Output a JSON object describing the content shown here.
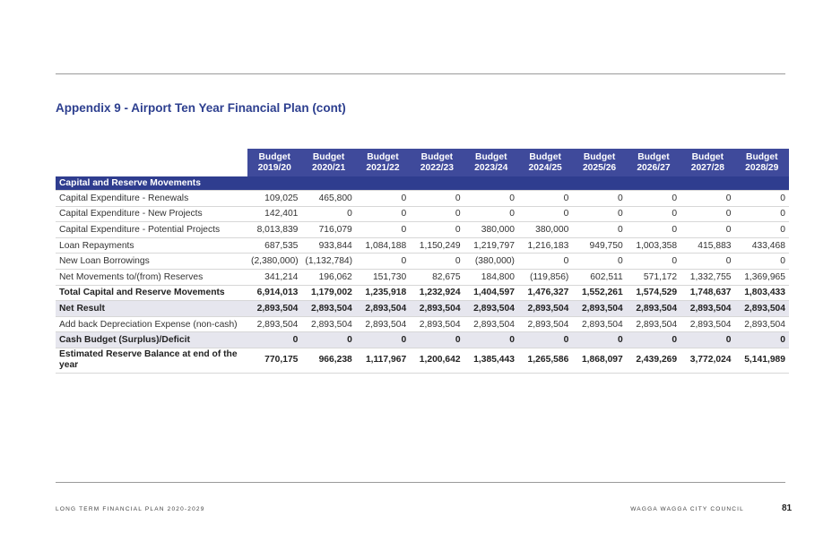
{
  "title": "Appendix 9 - Airport Ten Year Financial Plan (cont)",
  "columns": [
    [
      "Budget",
      "2019/20"
    ],
    [
      "Budget",
      "2020/21"
    ],
    [
      "Budget",
      "2021/22"
    ],
    [
      "Budget",
      "2022/23"
    ],
    [
      "Budget",
      "2023/24"
    ],
    [
      "Budget",
      "2024/25"
    ],
    [
      "Budget",
      "2025/26"
    ],
    [
      "Budget",
      "2026/27"
    ],
    [
      "Budget",
      "2027/28"
    ],
    [
      "Budget",
      "2028/29"
    ]
  ],
  "section_title": "Capital and Reserve Movements",
  "rows": [
    {
      "label": "Capital Expenditure - Renewals",
      "style": "normal",
      "values": [
        "109,025",
        "465,800",
        "0",
        "0",
        "0",
        "0",
        "0",
        "0",
        "0",
        "0"
      ]
    },
    {
      "label": "Capital Expenditure - New Projects",
      "style": "normal",
      "values": [
        "142,401",
        "0",
        "0",
        "0",
        "0",
        "0",
        "0",
        "0",
        "0",
        "0"
      ]
    },
    {
      "label": "Capital Expenditure - Potential Projects",
      "style": "normal",
      "values": [
        "8,013,839",
        "716,079",
        "0",
        "0",
        "380,000",
        "380,000",
        "0",
        "0",
        "0",
        "0"
      ]
    },
    {
      "label": "Loan Repayments",
      "style": "normal",
      "values": [
        "687,535",
        "933,844",
        "1,084,188",
        "1,150,249",
        "1,219,797",
        "1,216,183",
        "949,750",
        "1,003,358",
        "415,883",
        "433,468"
      ]
    },
    {
      "label": "New Loan Borrowings",
      "style": "normal",
      "values": [
        "(2,380,000)",
        "(1,132,784)",
        "0",
        "0",
        "(380,000)",
        "0",
        "0",
        "0",
        "0",
        "0"
      ]
    },
    {
      "label": "Net Movements to/(from) Reserves",
      "style": "normal",
      "values": [
        "341,214",
        "196,062",
        "151,730",
        "82,675",
        "184,800",
        "(119,856)",
        "602,511",
        "571,172",
        "1,332,755",
        "1,369,965"
      ]
    },
    {
      "label": "Total Capital and Reserve Movements",
      "style": "total",
      "values": [
        "6,914,013",
        "1,179,002",
        "1,235,918",
        "1,232,924",
        "1,404,597",
        "1,476,327",
        "1,552,261",
        "1,574,529",
        "1,748,637",
        "1,803,433"
      ]
    },
    {
      "label": "Net Result",
      "style": "highlight",
      "values": [
        "2,893,504",
        "2,893,504",
        "2,893,504",
        "2,893,504",
        "2,893,504",
        "2,893,504",
        "2,893,504",
        "2,893,504",
        "2,893,504",
        "2,893,504"
      ]
    },
    {
      "label": "Add back Depreciation Expense (non-cash)",
      "style": "normal",
      "values": [
        "2,893,504",
        "2,893,504",
        "2,893,504",
        "2,893,504",
        "2,893,504",
        "2,893,504",
        "2,893,504",
        "2,893,504",
        "2,893,504",
        "2,893,504"
      ]
    },
    {
      "label": "Cash Budget (Surplus)/Deficit",
      "style": "highlight",
      "values": [
        "0",
        "0",
        "0",
        "0",
        "0",
        "0",
        "0",
        "0",
        "0",
        "0"
      ]
    },
    {
      "label": "Estimated Reserve Balance at end of the year",
      "style": "total tall",
      "values": [
        "770,175",
        "966,238",
        "1,117,967",
        "1,200,642",
        "1,385,443",
        "1,265,586",
        "1,868,097",
        "2,439,269",
        "3,772,024",
        "5,141,989"
      ]
    }
  ],
  "footer": {
    "left": "LONG TERM FINANCIAL PLAN 2020-2029",
    "right": "WAGGA WAGGA CITY COUNCIL",
    "page": "81"
  }
}
